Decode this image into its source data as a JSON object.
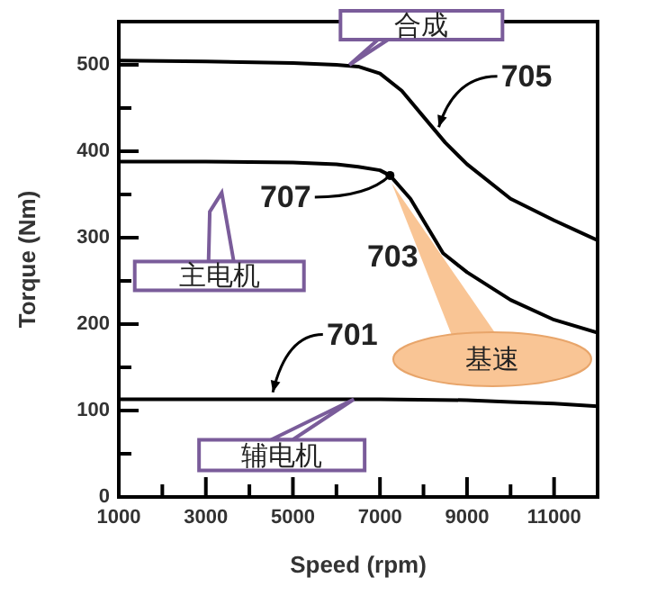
{
  "chart_data": {
    "type": "line",
    "xlabel": "Speed (rpm)",
    "ylabel": "Torque (Nm)",
    "xlim": [
      1000,
      12000
    ],
    "ylim": [
      0,
      550
    ],
    "xticks": [
      1000,
      {
        "value": 2000,
        "label": null
      },
      3000,
      {
        "value": 4000,
        "label": null
      },
      5000,
      {
        "value": 6000,
        "label": null
      },
      7000,
      {
        "value": 8000,
        "label": null
      },
      9000,
      {
        "value": 10000,
        "label": null
      },
      11000
    ],
    "yticks": [
      0,
      {
        "value": 50,
        "label": null
      },
      100,
      {
        "value": 150,
        "label": null
      },
      200,
      {
        "value": 250,
        "label": null
      },
      300,
      {
        "value": 350,
        "label": null
      },
      400,
      {
        "value": 450,
        "label": null
      },
      500
    ],
    "series": [
      {
        "color": "#000000",
        "x": [
          1000,
          3000,
          5000,
          6000,
          6500,
          7000,
          7500,
          8000,
          8500,
          9000,
          10000,
          11000,
          12000
        ],
        "values": [
          505,
          504,
          502,
          500,
          498,
          490,
          470,
          440,
          410,
          385,
          345,
          320,
          297
        ]
      },
      {
        "color": "#000000",
        "x": [
          1000,
          3000,
          5000,
          6000,
          6500,
          7000,
          7230,
          7700,
          8450,
          9000,
          10000,
          11000,
          12000
        ],
        "values": [
          388,
          388,
          387,
          385,
          382,
          378,
          372,
          345,
          282,
          260,
          228,
          205,
          190
        ]
      },
      {
        "color": "#000000",
        "x": [
          1000,
          3000,
          5000,
          7000,
          9000,
          10000,
          11000,
          12000
        ],
        "values": [
          113,
          113,
          113,
          113,
          112,
          110,
          108,
          105
        ]
      }
    ],
    "marker": "none",
    "line_style": "solid",
    "grid": false,
    "legend": false,
    "annotations": [
      {
        "text": "合成",
        "x": 6300,
        "y": 500
      },
      {
        "text": "705",
        "x": 8300,
        "y": 420
      },
      "主电机",
      {
        "text": "707",
        "x": 7230,
        "y": 372
      },
      {
        "text": "703",
        "x": 8450,
        "y": 282
      },
      "基速",
      {
        "text": "701",
        "x": 4500,
        "y": 113
      },
      {
        "text": "辅电机",
        "x": 6400,
        "y": 113
      }
    ]
  }
}
